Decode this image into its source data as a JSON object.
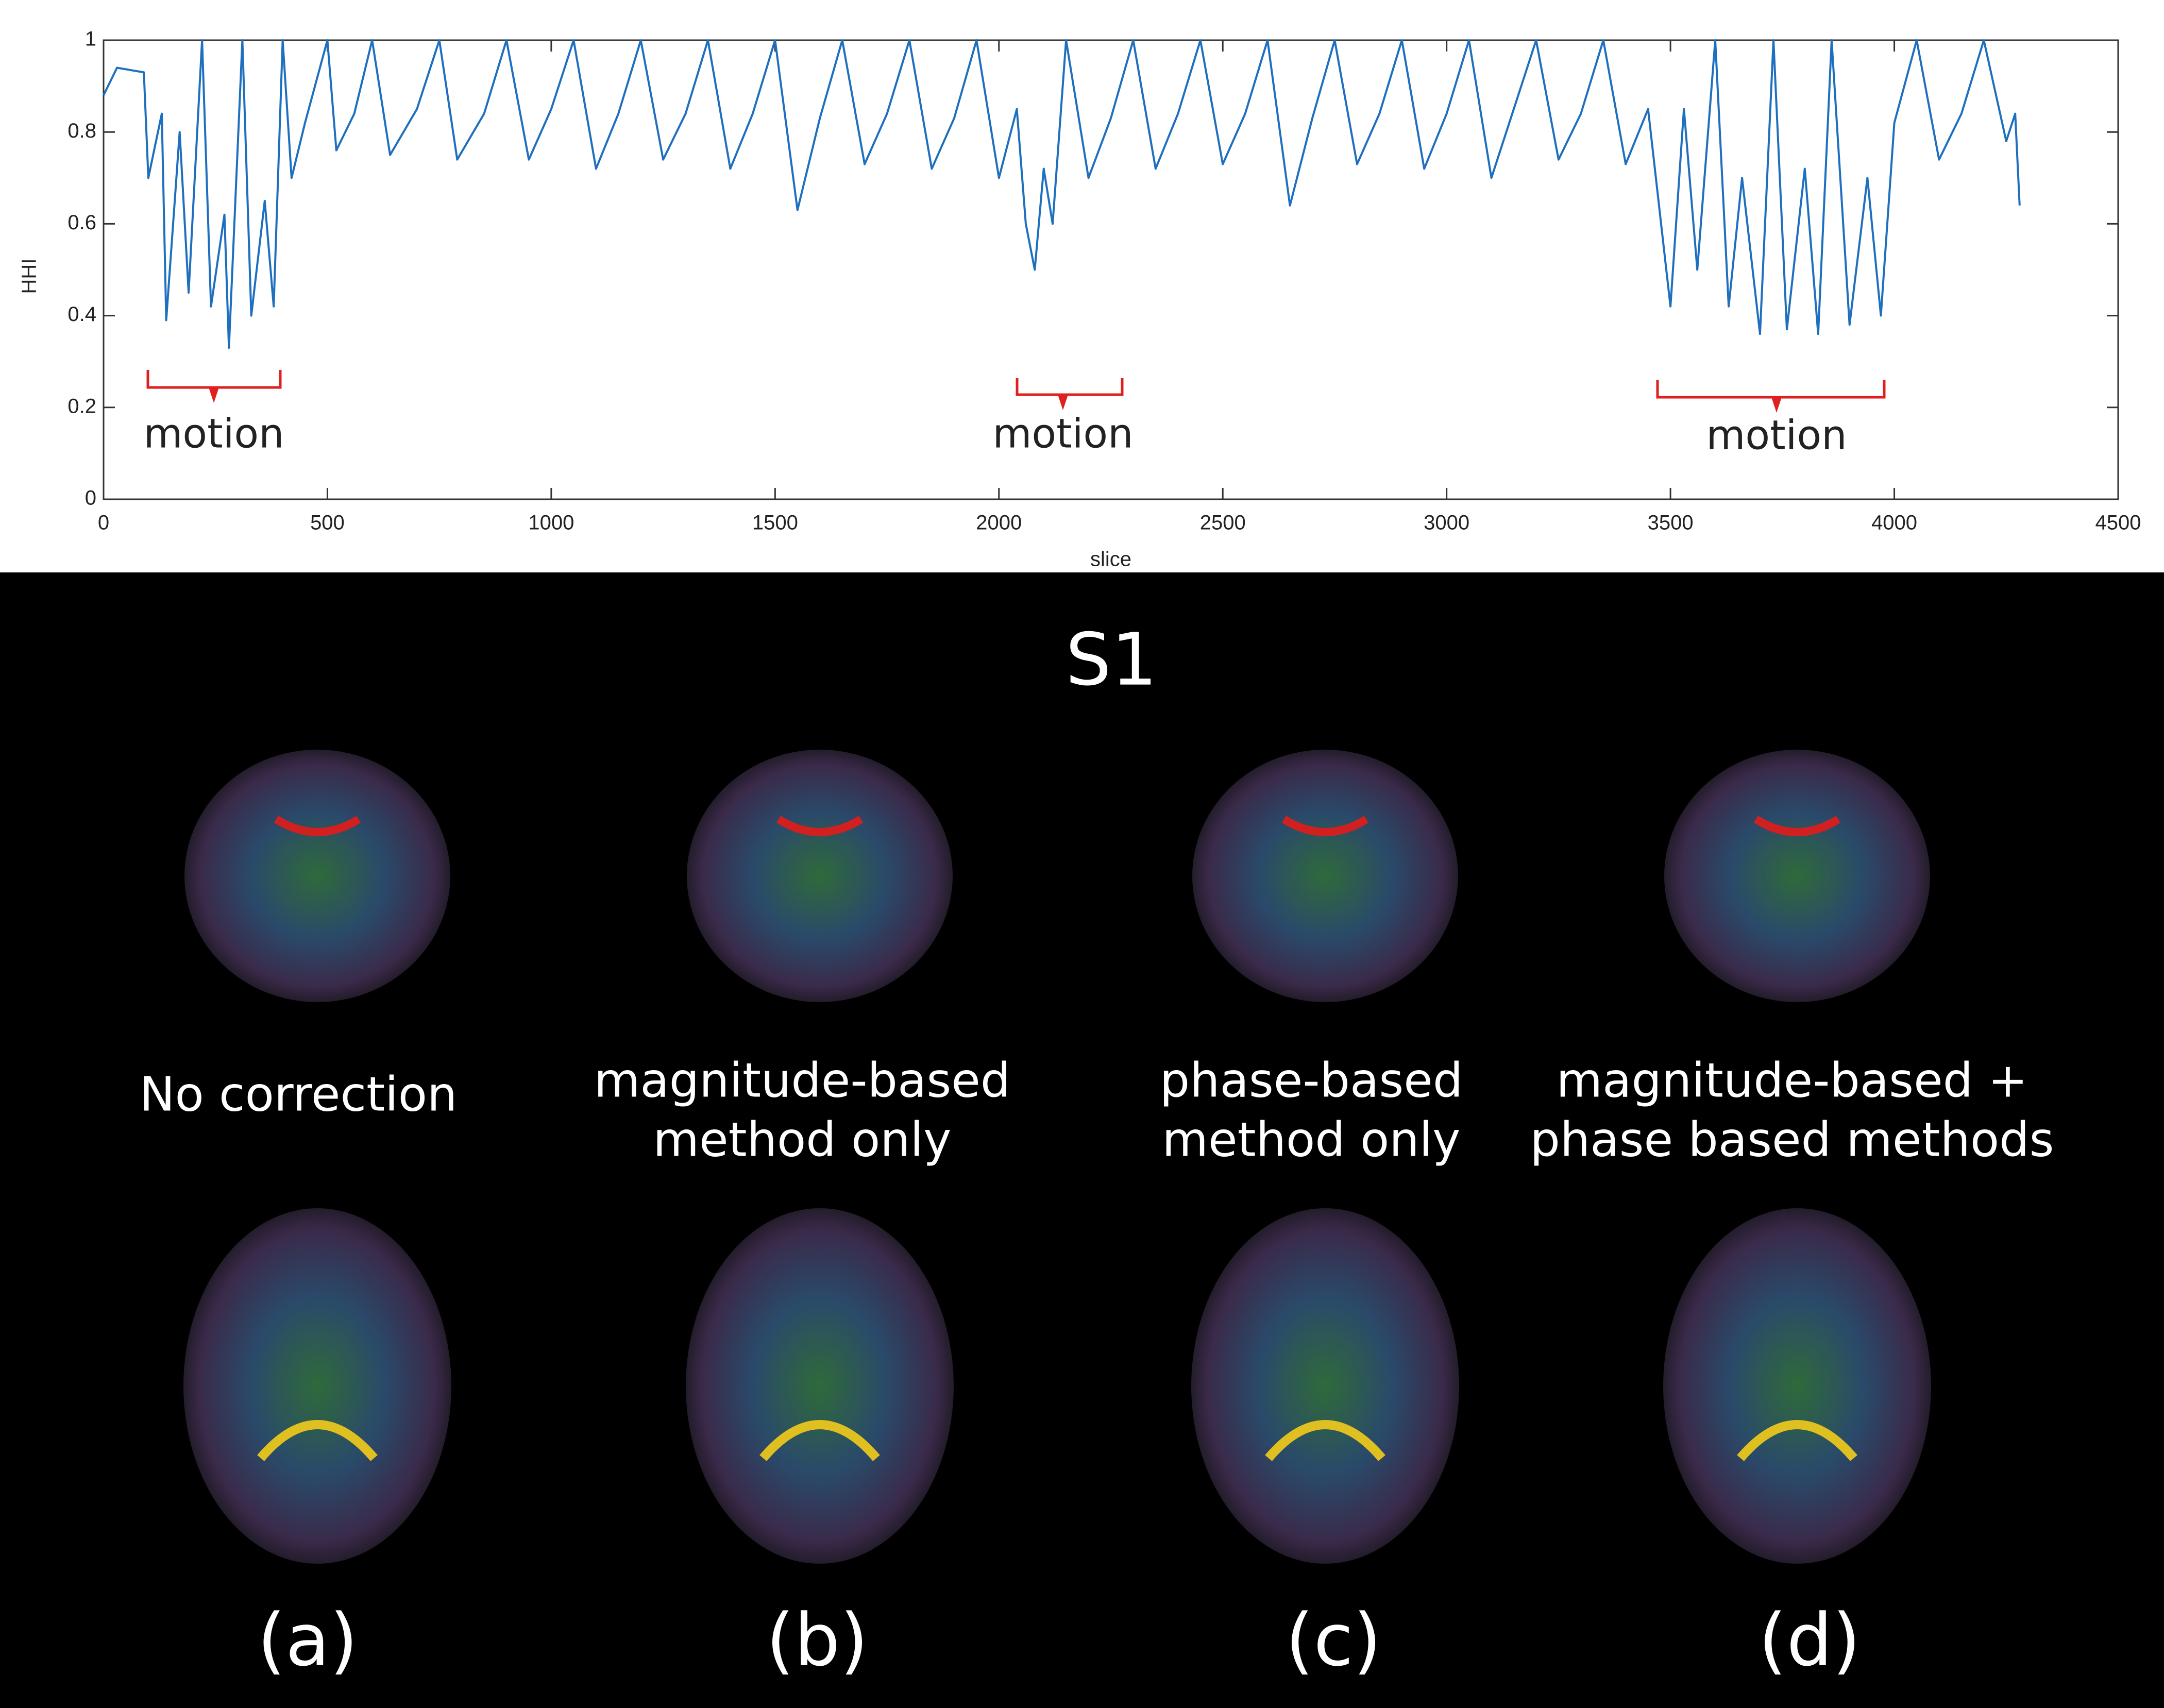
{
  "chart_data": {
    "type": "line",
    "x_label": "slice",
    "y_label": "HHI",
    "xlim": [
      0,
      4500
    ],
    "xticks": [
      0,
      500,
      1000,
      1500,
      2000,
      2500,
      3000,
      3500,
      4000,
      4500
    ],
    "ylim": [
      0,
      1
    ],
    "yticks": [
      0,
      0.2,
      0.4,
      0.6,
      0.8,
      1
    ],
    "annotations": [
      "motion",
      "motion",
      "motion"
    ],
    "series": [
      {
        "color": "#1f6fbf",
        "x": [
          0,
          30,
          90,
          100,
          130,
          140,
          170,
          190,
          220,
          240,
          270,
          280,
          310,
          330,
          360,
          380,
          400,
          420,
          450,
          500,
          520,
          560,
          600,
          640,
          700,
          750,
          790,
          850,
          900,
          950,
          1000,
          1050,
          1100,
          1150,
          1200,
          1250,
          1300,
          1350,
          1400,
          1450,
          1500,
          1550,
          1600,
          1650,
          1700,
          1750,
          1800,
          1850,
          1900,
          1950,
          2000,
          2040,
          2060,
          2080,
          2100,
          2120,
          2150,
          2200,
          2250,
          2300,
          2350,
          2400,
          2450,
          2500,
          2550,
          2600,
          2650,
          2700,
          2750,
          2800,
          2850,
          2900,
          2950,
          3000,
          3050,
          3100,
          3150,
          3200,
          3250,
          3300,
          3350,
          3400,
          3450,
          3500,
          3530,
          3560,
          3600,
          3630,
          3660,
          3700,
          3730,
          3760,
          3800,
          3830,
          3860,
          3900,
          3940,
          3970,
          4000,
          4050,
          4100,
          4150,
          4200,
          4250,
          4270,
          4280
        ],
        "values": [
          0.88,
          0.94,
          0.93,
          0.7,
          0.84,
          0.39,
          0.8,
          0.45,
          1,
          0.42,
          0.62,
          0.33,
          1,
          0.4,
          0.65,
          0.42,
          1,
          0.7,
          0.82,
          1,
          0.76,
          0.84,
          1,
          0.75,
          0.85,
          1,
          0.74,
          0.84,
          1,
          0.74,
          0.85,
          1,
          0.72,
          0.84,
          1,
          0.74,
          0.84,
          1,
          0.72,
          0.84,
          1,
          0.63,
          0.83,
          1,
          0.73,
          0.84,
          1,
          0.72,
          0.83,
          1,
          0.7,
          0.85,
          0.6,
          0.5,
          0.72,
          0.6,
          1,
          0.7,
          0.83,
          1,
          0.72,
          0.84,
          1,
          0.73,
          0.84,
          1,
          0.64,
          0.83,
          1,
          0.73,
          0.84,
          1,
          0.72,
          0.84,
          1,
          0.7,
          0.85,
          1,
          0.74,
          0.84,
          1,
          0.73,
          0.85,
          0.42,
          0.85,
          0.5,
          1,
          0.42,
          0.7,
          0.36,
          1,
          0.37,
          0.72,
          0.36,
          1,
          0.38,
          0.7,
          0.4,
          0.82,
          1,
          0.74,
          0.84,
          1,
          0.78,
          0.84,
          0.64
        ]
      }
    ]
  },
  "panel": {
    "title": "S1",
    "columns": [
      {
        "caption": [
          "No correction"
        ],
        "label": "(a)"
      },
      {
        "caption": [
          "magnitude-based",
          "method only"
        ],
        "label": "(b)"
      },
      {
        "caption": [
          "phase-based",
          "method only"
        ],
        "label": "(c)"
      },
      {
        "caption": [
          "magnitude-based +",
          "phase based methods"
        ],
        "label": "(d)"
      }
    ]
  }
}
